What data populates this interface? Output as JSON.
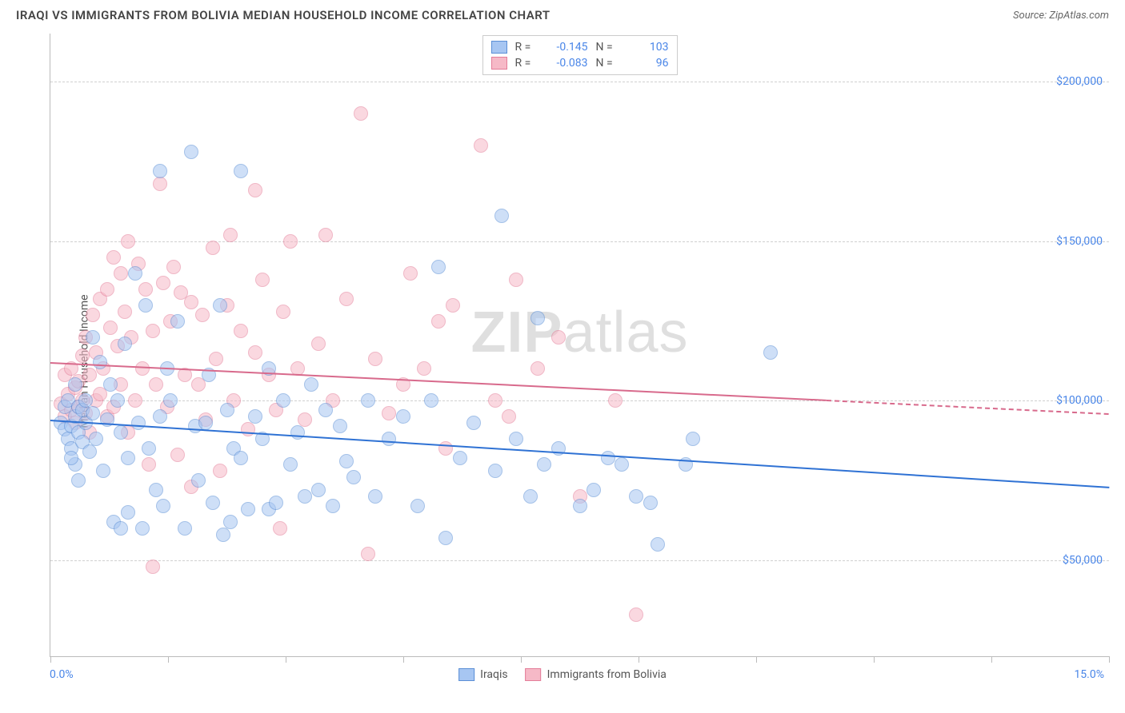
{
  "title": "IRAQI VS IMMIGRANTS FROM BOLIVIA MEDIAN HOUSEHOLD INCOME CORRELATION CHART",
  "source": "Source: ZipAtlas.com",
  "watermark_bold": "ZIP",
  "watermark_rest": "atlas",
  "chart": {
    "type": "scatter",
    "ylabel": "Median Household Income",
    "xlim": [
      0,
      15
    ],
    "ylim": [
      20000,
      215000
    ],
    "x_axis_labels": {
      "left": "0.0%",
      "right": "15.0%"
    },
    "y_ticks": [
      50000,
      100000,
      150000,
      200000
    ],
    "y_tick_labels": [
      "$50,000",
      "$100,000",
      "$150,000",
      "$200,000"
    ],
    "x_ticks": [
      0,
      1.67,
      3.33,
      5.0,
      6.67,
      8.33,
      10.0,
      11.67,
      13.33,
      15.0
    ],
    "grid_color": "#d0d0d0",
    "axis_color": "#bbbbbb",
    "background_color": "#ffffff",
    "accent_color": "#4a86e8",
    "point_radius": 9,
    "point_opacity": 0.55,
    "series": [
      {
        "name": "Iraqis",
        "fill": "#a7c6f2",
        "stroke": "#5b8fd6",
        "trend_color": "#2f72d4",
        "R": "-0.145",
        "N": "103",
        "trend": {
          "x1": 0,
          "y1": 94000,
          "x2": 15,
          "y2": 73000,
          "solid_until_x": 15
        },
        "points": [
          [
            0.15,
            93000
          ],
          [
            0.2,
            91000
          ],
          [
            0.2,
            98000
          ],
          [
            0.25,
            88000
          ],
          [
            0.25,
            100000
          ],
          [
            0.3,
            92000
          ],
          [
            0.3,
            85000
          ],
          [
            0.35,
            95000
          ],
          [
            0.35,
            105000
          ],
          [
            0.35,
            80000
          ],
          [
            0.4,
            98000
          ],
          [
            0.4,
            90000
          ],
          [
            0.45,
            97000
          ],
          [
            0.45,
            87000
          ],
          [
            0.5,
            93000
          ],
          [
            0.5,
            100000
          ],
          [
            0.55,
            84000
          ],
          [
            0.6,
            96000
          ],
          [
            0.6,
            120000
          ],
          [
            0.65,
            88000
          ],
          [
            0.7,
            112000
          ],
          [
            0.75,
            78000
          ],
          [
            0.8,
            94000
          ],
          [
            0.85,
            105000
          ],
          [
            0.9,
            62000
          ],
          [
            0.95,
            100000
          ],
          [
            1.0,
            90000
          ],
          [
            1.05,
            118000
          ],
          [
            1.1,
            65000
          ],
          [
            1.1,
            82000
          ],
          [
            1.2,
            140000
          ],
          [
            1.25,
            93000
          ],
          [
            1.3,
            60000
          ],
          [
            1.35,
            130000
          ],
          [
            1.4,
            85000
          ],
          [
            1.5,
            72000
          ],
          [
            1.55,
            95000
          ],
          [
            1.6,
            67000
          ],
          [
            1.65,
            110000
          ],
          [
            1.7,
            100000
          ],
          [
            1.8,
            125000
          ],
          [
            1.9,
            60000
          ],
          [
            2.0,
            178000
          ],
          [
            2.05,
            92000
          ],
          [
            2.1,
            75000
          ],
          [
            2.2,
            93000
          ],
          [
            2.25,
            108000
          ],
          [
            2.3,
            68000
          ],
          [
            2.4,
            130000
          ],
          [
            2.5,
            97000
          ],
          [
            2.55,
            62000
          ],
          [
            2.6,
            85000
          ],
          [
            2.7,
            172000
          ],
          [
            2.7,
            82000
          ],
          [
            2.8,
            66000
          ],
          [
            2.9,
            95000
          ],
          [
            3.0,
            88000
          ],
          [
            3.1,
            110000
          ],
          [
            3.1,
            66000
          ],
          [
            3.2,
            68000
          ],
          [
            3.3,
            100000
          ],
          [
            3.4,
            80000
          ],
          [
            3.5,
            90000
          ],
          [
            3.6,
            70000
          ],
          [
            3.7,
            105000
          ],
          [
            3.8,
            72000
          ],
          [
            3.9,
            97000
          ],
          [
            4.0,
            67000
          ],
          [
            4.1,
            92000
          ],
          [
            4.2,
            81000
          ],
          [
            4.3,
            76000
          ],
          [
            4.5,
            100000
          ],
          [
            4.6,
            70000
          ],
          [
            4.8,
            88000
          ],
          [
            5.0,
            95000
          ],
          [
            5.2,
            67000
          ],
          [
            5.4,
            100000
          ],
          [
            5.5,
            142000
          ],
          [
            5.6,
            57000
          ],
          [
            5.8,
            82000
          ],
          [
            6.0,
            93000
          ],
          [
            6.3,
            78000
          ],
          [
            6.4,
            158000
          ],
          [
            6.6,
            88000
          ],
          [
            6.8,
            70000
          ],
          [
            6.9,
            126000
          ],
          [
            7.0,
            80000
          ],
          [
            7.2,
            85000
          ],
          [
            7.5,
            67000
          ],
          [
            7.7,
            72000
          ],
          [
            7.9,
            82000
          ],
          [
            8.1,
            80000
          ],
          [
            8.3,
            70000
          ],
          [
            8.5,
            68000
          ],
          [
            8.6,
            55000
          ],
          [
            9.0,
            80000
          ],
          [
            9.1,
            88000
          ],
          [
            10.2,
            115000
          ],
          [
            1.55,
            172000
          ],
          [
            1.0,
            60000
          ],
          [
            2.45,
            58000
          ],
          [
            0.3,
            82000
          ],
          [
            0.4,
            75000
          ]
        ]
      },
      {
        "name": "Immigrants from Bolivia",
        "fill": "#f6b9c7",
        "stroke": "#e47d99",
        "trend_color": "#d86a8c",
        "R": "-0.083",
        "N": "96",
        "trend": {
          "x1": 0,
          "y1": 112000,
          "x2": 15,
          "y2": 96000,
          "solid_until_x": 11.0
        },
        "points": [
          [
            0.15,
            99000
          ],
          [
            0.2,
            95000
          ],
          [
            0.2,
            108000
          ],
          [
            0.25,
            102000
          ],
          [
            0.3,
            97000
          ],
          [
            0.3,
            110000
          ],
          [
            0.35,
            104000
          ],
          [
            0.35,
            93000
          ],
          [
            0.4,
            106000
          ],
          [
            0.4,
            98000
          ],
          [
            0.45,
            100000
          ],
          [
            0.45,
            114000
          ],
          [
            0.5,
            120000
          ],
          [
            0.5,
            96000
          ],
          [
            0.55,
            108000
          ],
          [
            0.55,
            90000
          ],
          [
            0.6,
            127000
          ],
          [
            0.65,
            115000
          ],
          [
            0.65,
            100000
          ],
          [
            0.7,
            102000
          ],
          [
            0.7,
            132000
          ],
          [
            0.75,
            110000
          ],
          [
            0.8,
            135000
          ],
          [
            0.8,
            95000
          ],
          [
            0.85,
            123000
          ],
          [
            0.9,
            145000
          ],
          [
            0.9,
            98000
          ],
          [
            0.95,
            117000
          ],
          [
            1.0,
            140000
          ],
          [
            1.0,
            105000
          ],
          [
            1.05,
            128000
          ],
          [
            1.1,
            150000
          ],
          [
            1.1,
            90000
          ],
          [
            1.15,
            120000
          ],
          [
            1.2,
            100000
          ],
          [
            1.25,
            143000
          ],
          [
            1.3,
            110000
          ],
          [
            1.35,
            135000
          ],
          [
            1.4,
            80000
          ],
          [
            1.45,
            122000
          ],
          [
            1.5,
            105000
          ],
          [
            1.55,
            168000
          ],
          [
            1.6,
            137000
          ],
          [
            1.65,
            98000
          ],
          [
            1.7,
            125000
          ],
          [
            1.75,
            142000
          ],
          [
            1.8,
            83000
          ],
          [
            1.85,
            134000
          ],
          [
            1.9,
            108000
          ],
          [
            2.0,
            73000
          ],
          [
            2.0,
            131000
          ],
          [
            2.1,
            105000
          ],
          [
            2.15,
            127000
          ],
          [
            2.2,
            94000
          ],
          [
            2.3,
            148000
          ],
          [
            2.35,
            113000
          ],
          [
            2.4,
            78000
          ],
          [
            2.5,
            130000
          ],
          [
            2.55,
            152000
          ],
          [
            2.6,
            100000
          ],
          [
            2.7,
            122000
          ],
          [
            2.8,
            91000
          ],
          [
            2.9,
            115000
          ],
          [
            2.9,
            166000
          ],
          [
            3.0,
            138000
          ],
          [
            3.1,
            108000
          ],
          [
            3.2,
            97000
          ],
          [
            3.3,
            128000
          ],
          [
            3.4,
            150000
          ],
          [
            3.5,
            110000
          ],
          [
            3.6,
            94000
          ],
          [
            3.8,
            118000
          ],
          [
            3.9,
            152000
          ],
          [
            4.0,
            100000
          ],
          [
            4.2,
            132000
          ],
          [
            4.4,
            190000
          ],
          [
            4.5,
            52000
          ],
          [
            4.6,
            113000
          ],
          [
            4.8,
            96000
          ],
          [
            5.0,
            105000
          ],
          [
            5.1,
            140000
          ],
          [
            5.3,
            110000
          ],
          [
            5.5,
            125000
          ],
          [
            5.6,
            85000
          ],
          [
            5.7,
            130000
          ],
          [
            6.1,
            180000
          ],
          [
            6.3,
            100000
          ],
          [
            6.5,
            95000
          ],
          [
            6.6,
            138000
          ],
          [
            6.9,
            110000
          ],
          [
            7.2,
            120000
          ],
          [
            7.5,
            70000
          ],
          [
            8.0,
            100000
          ],
          [
            8.3,
            33000
          ],
          [
            1.45,
            48000
          ],
          [
            3.25,
            60000
          ]
        ]
      }
    ],
    "legend_bottom": [
      {
        "label": "Iraqis",
        "series": 0
      },
      {
        "label": "Immigrants from Bolivia",
        "series": 1
      }
    ]
  }
}
